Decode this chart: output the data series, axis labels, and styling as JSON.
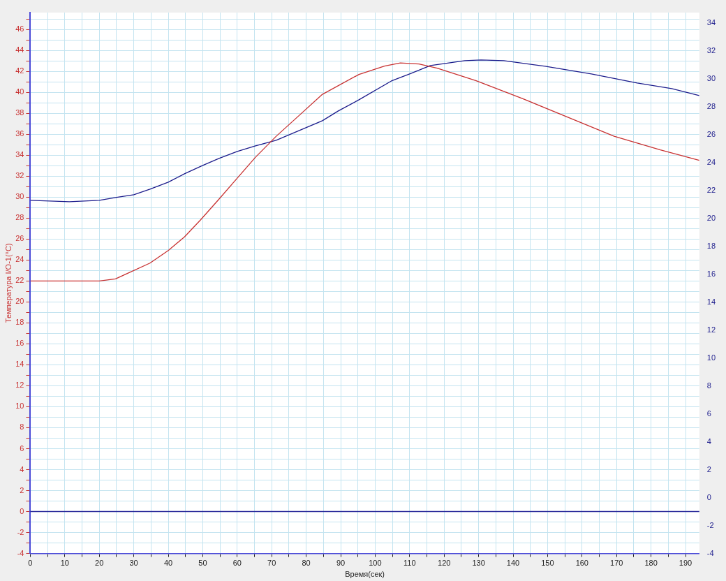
{
  "chart_data": {
    "type": "line",
    "xlabel": "Время(сек)",
    "ylabel": "Температура I/O-1(°C)",
    "xlim": [
      0,
      194
    ],
    "xticks": [
      0,
      {
        "value": 5,
        "label": null
      },
      10,
      {
        "value": 15,
        "label": null
      },
      20,
      {
        "value": 25,
        "label": null
      },
      30,
      {
        "value": 35,
        "label": null
      },
      40,
      {
        "value": 45,
        "label": null
      },
      50,
      {
        "value": 55,
        "label": null
      },
      60,
      {
        "value": 65,
        "label": null
      },
      70,
      {
        "value": 75,
        "label": null
      },
      80,
      {
        "value": 85,
        "label": null
      },
      90,
      {
        "value": 95,
        "label": null
      },
      100,
      {
        "value": 105,
        "label": null
      },
      110,
      {
        "value": 115,
        "label": null
      },
      120,
      {
        "value": 125,
        "label": null
      },
      130,
      {
        "value": 135,
        "label": null
      },
      140,
      {
        "value": 145,
        "label": null
      },
      150,
      {
        "value": 155,
        "label": null
      },
      160,
      {
        "value": 165,
        "label": null
      },
      170,
      {
        "value": 175,
        "label": null
      },
      180,
      {
        "value": 185,
        "label": null
      },
      190
    ],
    "ylim": [
      -4,
      47.6
    ],
    "yticks": [
      -4,
      {
        "value": -3,
        "label": null
      },
      -2,
      {
        "value": -1,
        "label": null
      },
      0,
      {
        "value": 1,
        "label": null
      },
      2,
      {
        "value": 3,
        "label": null
      },
      4,
      {
        "value": 5,
        "label": null
      },
      6,
      {
        "value": 7,
        "label": null
      },
      8,
      {
        "value": 9,
        "label": null
      },
      10,
      {
        "value": 11,
        "label": null
      },
      12,
      {
        "value": 13,
        "label": null
      },
      14,
      {
        "value": 15,
        "label": null
      },
      16,
      {
        "value": 17,
        "label": null
      },
      18,
      {
        "value": 19,
        "label": null
      },
      20,
      {
        "value": 21,
        "label": null
      },
      22,
      {
        "value": 23,
        "label": null
      },
      24,
      {
        "value": 25,
        "label": null
      },
      26,
      {
        "value": 27,
        "label": null
      },
      28,
      {
        "value": 29,
        "label": null
      },
      30,
      {
        "value": 31,
        "label": null
      },
      32,
      {
        "value": 33,
        "label": null
      },
      34,
      {
        "value": 35,
        "label": null
      },
      36,
      {
        "value": 37,
        "label": null
      },
      38,
      {
        "value": 39,
        "label": null
      },
      40,
      {
        "value": 41,
        "label": null
      },
      42,
      {
        "value": 43,
        "label": null
      },
      44,
      {
        "value": 45,
        "label": null
      },
      46,
      {
        "value": 47,
        "label": null
      }
    ],
    "y2lim": [
      -4,
      34.75
    ],
    "y2ticks": [
      -4,
      -2,
      0,
      2,
      4,
      6,
      8,
      10,
      12,
      14,
      16,
      18,
      20,
      22,
      24,
      26,
      28,
      30,
      32,
      34
    ],
    "grid": true,
    "legend": false,
    "marker": "none",
    "line_style": "solid",
    "ref_lines": [
      {
        "axis": "y",
        "value": 0,
        "color": "#2a2a9a"
      }
    ],
    "series": [
      {
        "color": "#c83232",
        "x": [
          0,
          10,
          20,
          24.7,
          28,
          34.7,
          40,
          44.7,
          49.3,
          54.7,
          60,
          65.3,
          71.3,
          78,
          84.7,
          95.3,
          102.7,
          107.3,
          112.7,
          118,
          129.3,
          142.7,
          156,
          169.3,
          182.7,
          194
        ],
        "values": [
          22.0,
          22.0,
          22.0,
          22.2,
          22.7,
          23.7,
          24.9,
          26.2,
          27.8,
          29.8,
          31.8,
          33.8,
          35.8,
          37.8,
          39.8,
          41.7,
          42.5,
          42.8,
          42.7,
          42.3,
          41.1,
          39.4,
          37.6,
          35.8,
          34.5,
          33.5
        ]
      },
      {
        "color": "#1c1c8c",
        "axis": "y2",
        "x": [
          0,
          11.3,
          20,
          24.7,
          30,
          34.7,
          40,
          44.7,
          50,
          54.7,
          60,
          65.3,
          71.3,
          78,
          84.7,
          89.3,
          95.3,
          104.7,
          110,
          116,
          126,
          130.7,
          137.3,
          149.3,
          162.7,
          176,
          186,
          194
        ],
        "values": [
          21.3,
          21.2,
          21.3,
          21.5,
          21.7,
          22.1,
          22.6,
          23.2,
          23.8,
          24.3,
          24.8,
          25.2,
          25.6,
          26.3,
          27.0,
          27.7,
          28.5,
          29.85,
          30.35,
          30.95,
          31.3,
          31.35,
          31.3,
          30.9,
          30.35,
          29.7,
          29.3,
          28.8
        ]
      }
    ]
  }
}
